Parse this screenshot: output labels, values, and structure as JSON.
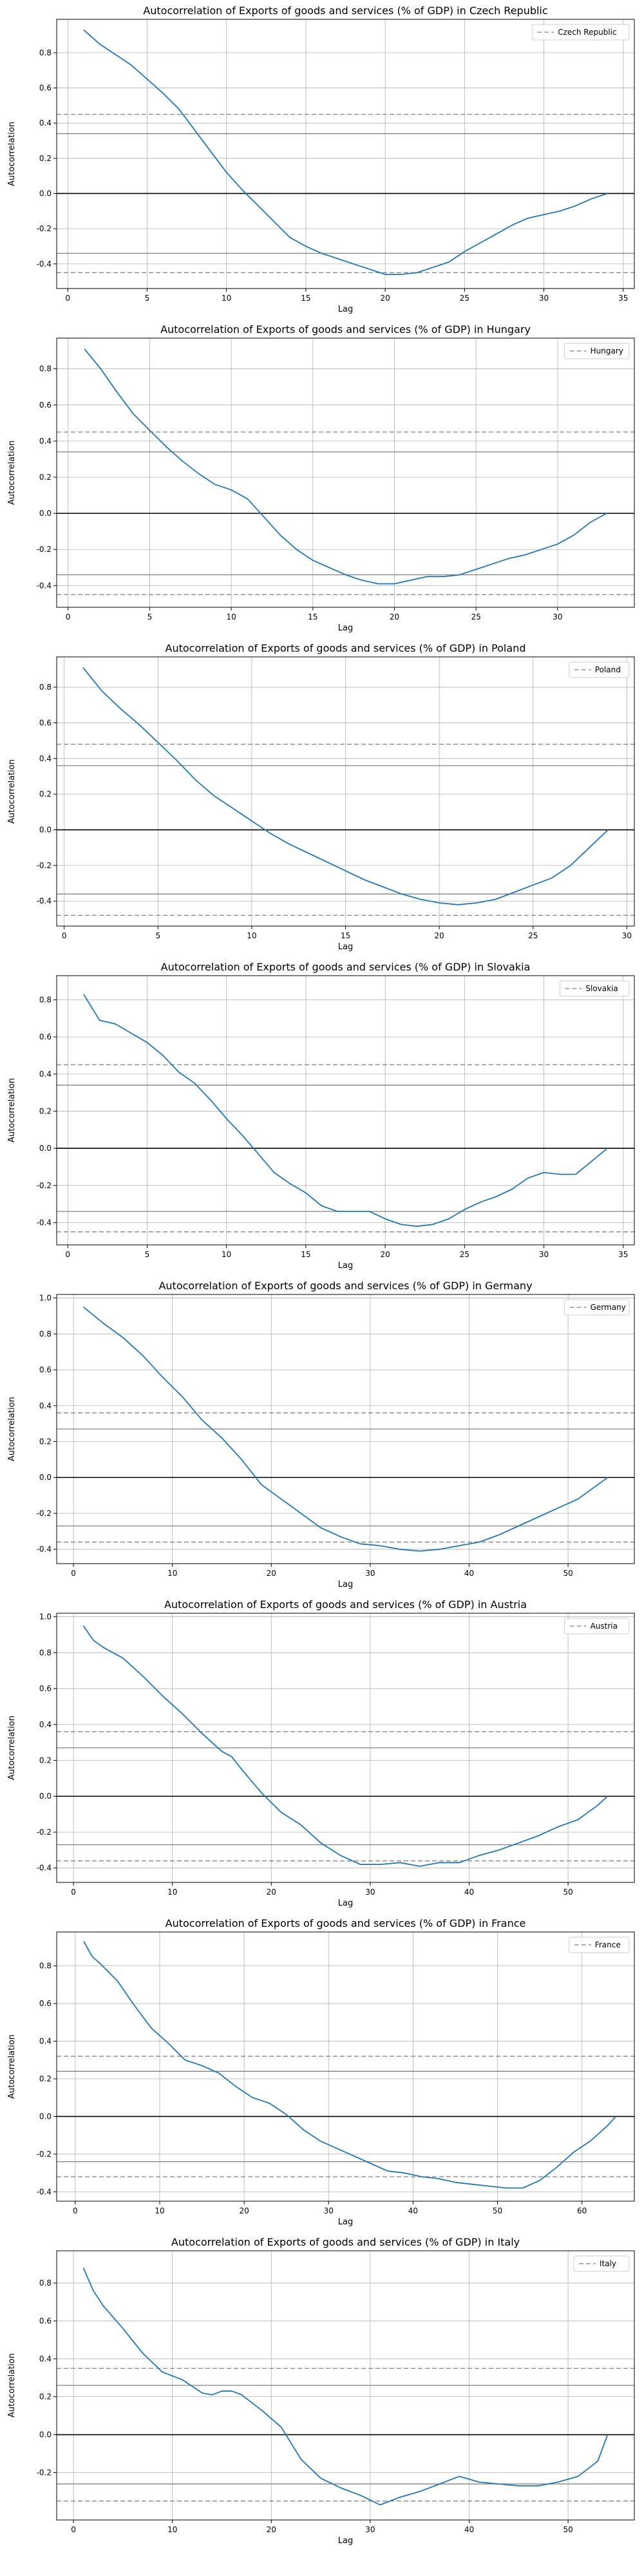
{
  "colors": {
    "series": "#1f77b4",
    "grid": "#b0b0b0",
    "zero_line": "#000000",
    "confidence_solid": "#808080",
    "confidence_dashed": "#808080",
    "axes": "#000000"
  },
  "chart_data": [
    {
      "type": "line",
      "title": "Autocorrelation of Exports of goods and services (% of GDP) in Czech Republic",
      "xlabel": "Lag",
      "ylabel": "Autocorrelation",
      "legend": "Czech Republic",
      "legend_position": "top-right",
      "grid": true,
      "xlim": [
        -0.7,
        35.7
      ],
      "ylim": [
        -0.54,
        0.99
      ],
      "xticks": [
        0,
        5,
        10,
        15,
        20,
        25,
        30,
        35
      ],
      "yticks": [
        -0.4,
        -0.2,
        0.0,
        0.2,
        0.4,
        0.6,
        0.8
      ],
      "conf_solid": 0.34,
      "conf_dashed": 0.45,
      "x": [
        1,
        2,
        3,
        4,
        5,
        6,
        7,
        8,
        9,
        10,
        11,
        12,
        13,
        14,
        15,
        16,
        17,
        18,
        19,
        20,
        21,
        22,
        23,
        24,
        25,
        26,
        27,
        28,
        29,
        30,
        31,
        32,
        33,
        34
      ],
      "values": [
        0.93,
        0.85,
        0.79,
        0.73,
        0.65,
        0.57,
        0.48,
        0.36,
        0.24,
        0.12,
        0.02,
        -0.07,
        -0.16,
        -0.25,
        -0.3,
        -0.34,
        -0.37,
        -0.4,
        -0.43,
        -0.46,
        -0.46,
        -0.45,
        -0.42,
        -0.39,
        -0.33,
        -0.28,
        -0.23,
        -0.18,
        -0.14,
        -0.12,
        -0.1,
        -0.07,
        -0.03,
        0.0
      ]
    },
    {
      "type": "line",
      "title": "Autocorrelation of Exports of goods and services (% of GDP) in Hungary",
      "xlabel": "Lag",
      "ylabel": "Autocorrelation",
      "legend": "Hungary",
      "legend_position": "top-right",
      "grid": true,
      "xlim": [
        -0.7,
        34.7
      ],
      "ylim": [
        -0.52,
        0.97
      ],
      "xticks": [
        0,
        5,
        10,
        15,
        20,
        25,
        30
      ],
      "yticks": [
        -0.4,
        -0.2,
        0.0,
        0.2,
        0.4,
        0.6,
        0.8
      ],
      "conf_solid": 0.34,
      "conf_dashed": 0.45,
      "x": [
        1,
        2,
        3,
        4,
        5,
        6,
        7,
        8,
        9,
        10,
        11,
        12,
        13,
        14,
        15,
        16,
        17,
        18,
        19,
        20,
        21,
        22,
        23,
        24,
        25,
        26,
        27,
        28,
        29,
        30,
        31,
        32,
        33
      ],
      "values": [
        0.91,
        0.8,
        0.67,
        0.55,
        0.46,
        0.37,
        0.29,
        0.22,
        0.16,
        0.13,
        0.08,
        -0.02,
        -0.12,
        -0.2,
        -0.26,
        -0.3,
        -0.34,
        -0.37,
        -0.39,
        -0.39,
        -0.37,
        -0.35,
        -0.35,
        -0.34,
        -0.31,
        -0.28,
        -0.25,
        -0.23,
        -0.2,
        -0.17,
        -0.12,
        -0.05,
        0.0
      ]
    },
    {
      "type": "line",
      "title": "Autocorrelation of Exports of goods and services (% of GDP) in Poland",
      "xlabel": "Lag",
      "ylabel": "Autocorrelation",
      "legend": "Poland",
      "legend_position": "top-right",
      "grid": true,
      "xlim": [
        -0.4,
        30.4
      ],
      "ylim": [
        -0.54,
        0.97
      ],
      "xticks": [
        0,
        5,
        10,
        15,
        20,
        25,
        30
      ],
      "yticks": [
        -0.4,
        -0.2,
        0.0,
        0.2,
        0.4,
        0.6,
        0.8
      ],
      "conf_solid": 0.36,
      "conf_dashed": 0.48,
      "x": [
        1,
        2,
        3,
        4,
        5,
        6,
        7,
        8,
        9,
        10,
        11,
        12,
        13,
        14,
        15,
        16,
        17,
        18,
        19,
        20,
        21,
        22,
        23,
        24,
        25,
        26,
        27,
        28,
        29
      ],
      "values": [
        0.91,
        0.78,
        0.68,
        0.59,
        0.49,
        0.39,
        0.28,
        0.19,
        0.12,
        0.05,
        -0.02,
        -0.08,
        -0.13,
        -0.18,
        -0.23,
        -0.28,
        -0.32,
        -0.36,
        -0.39,
        -0.41,
        -0.42,
        -0.41,
        -0.39,
        -0.35,
        -0.31,
        -0.27,
        -0.2,
        -0.1,
        0.0
      ]
    },
    {
      "type": "line",
      "title": "Autocorrelation of Exports of goods and services (% of GDP) in Slovakia",
      "xlabel": "Lag",
      "ylabel": "Autocorrelation",
      "legend": "Slovakia",
      "legend_position": "top-right",
      "grid": true,
      "xlim": [
        -0.7,
        35.7
      ],
      "ylim": [
        -0.52,
        0.93
      ],
      "xticks": [
        0,
        5,
        10,
        15,
        20,
        25,
        30,
        35
      ],
      "yticks": [
        -0.4,
        -0.2,
        0.0,
        0.2,
        0.4,
        0.6,
        0.8
      ],
      "conf_solid": 0.34,
      "conf_dashed": 0.45,
      "x": [
        1,
        2,
        3,
        4,
        5,
        6,
        7,
        8,
        9,
        10,
        11,
        12,
        13,
        14,
        15,
        16,
        17,
        18,
        19,
        20,
        21,
        22,
        23,
        24,
        25,
        26,
        27,
        28,
        29,
        30,
        31,
        32,
        33,
        34
      ],
      "values": [
        0.83,
        0.69,
        0.67,
        0.62,
        0.57,
        0.5,
        0.41,
        0.35,
        0.26,
        0.16,
        0.07,
        -0.03,
        -0.13,
        -0.19,
        -0.24,
        -0.31,
        -0.34,
        -0.34,
        -0.34,
        -0.38,
        -0.41,
        -0.42,
        -0.41,
        -0.38,
        -0.33,
        -0.29,
        -0.26,
        -0.22,
        -0.16,
        -0.13,
        -0.14,
        -0.14,
        -0.07,
        0.0
      ]
    },
    {
      "type": "line",
      "title": "Autocorrelation of Exports of goods and services (% of GDP) in Germany",
      "xlabel": "Lag",
      "ylabel": "Autocorrelation",
      "legend": "Germany",
      "legend_position": "top-right",
      "grid": true,
      "xlim": [
        -1.7,
        56.7
      ],
      "ylim": [
        -0.48,
        1.02
      ],
      "xticks": [
        0,
        10,
        20,
        30,
        40,
        50
      ],
      "yticks": [
        -0.4,
        -0.2,
        0.0,
        0.2,
        0.4,
        0.6,
        0.8,
        1.0
      ],
      "conf_solid": 0.27,
      "conf_dashed": 0.36,
      "x": [
        1,
        3,
        5,
        7,
        9,
        11,
        13,
        15,
        17,
        19,
        21,
        23,
        25,
        27,
        29,
        31,
        33,
        35,
        37,
        39,
        41,
        43,
        45,
        47,
        49,
        51,
        53,
        54
      ],
      "values": [
        0.95,
        0.86,
        0.78,
        0.68,
        0.56,
        0.45,
        0.32,
        0.22,
        0.1,
        -0.04,
        -0.12,
        -0.2,
        -0.28,
        -0.33,
        -0.37,
        -0.38,
        -0.4,
        -0.41,
        -0.4,
        -0.38,
        -0.36,
        -0.32,
        -0.27,
        -0.22,
        -0.17,
        -0.12,
        -0.04,
        0.0
      ]
    },
    {
      "type": "line",
      "title": "Autocorrelation of Exports of goods and services (% of GDP) in Austria",
      "xlabel": "Lag",
      "ylabel": "Autocorrelation",
      "legend": "Austria",
      "legend_position": "top-right",
      "grid": true,
      "xlim": [
        -1.7,
        56.7
      ],
      "ylim": [
        -0.48,
        1.02
      ],
      "xticks": [
        0,
        10,
        20,
        30,
        40,
        50
      ],
      "yticks": [
        -0.4,
        -0.2,
        0.0,
        0.2,
        0.4,
        0.6,
        0.8,
        1.0
      ],
      "conf_solid": 0.27,
      "conf_dashed": 0.36,
      "x": [
        1,
        2,
        3,
        5,
        7,
        9,
        11,
        13,
        15,
        16,
        17,
        19,
        21,
        23,
        25,
        27,
        29,
        31,
        33,
        35,
        37,
        39,
        41,
        43,
        45,
        47,
        49,
        51,
        53,
        54
      ],
      "values": [
        0.95,
        0.87,
        0.83,
        0.77,
        0.67,
        0.56,
        0.46,
        0.35,
        0.25,
        0.22,
        0.15,
        0.02,
        -0.09,
        -0.16,
        -0.26,
        -0.33,
        -0.38,
        -0.38,
        -0.37,
        -0.39,
        -0.37,
        -0.37,
        -0.33,
        -0.3,
        -0.26,
        -0.22,
        -0.17,
        -0.13,
        -0.05,
        0.0
      ]
    },
    {
      "type": "line",
      "title": "Autocorrelation of Exports of goods and services (% of GDP) in France",
      "xlabel": "Lag",
      "ylabel": "Autocorrelation",
      "legend": "France",
      "legend_position": "top-right",
      "grid": true,
      "xlim": [
        -2.2,
        66.2
      ],
      "ylim": [
        -0.45,
        0.98
      ],
      "xticks": [
        0,
        10,
        20,
        30,
        40,
        50,
        60
      ],
      "yticks": [
        -0.4,
        -0.2,
        0.0,
        0.2,
        0.4,
        0.6,
        0.8
      ],
      "conf_solid": 0.24,
      "conf_dashed": 0.32,
      "x": [
        1,
        2,
        3,
        5,
        7,
        9,
        11,
        13,
        15,
        17,
        19,
        21,
        23,
        25,
        27,
        29,
        31,
        33,
        35,
        37,
        39,
        41,
        43,
        45,
        47,
        49,
        51,
        53,
        55,
        57,
        59,
        61,
        63,
        64
      ],
      "values": [
        0.93,
        0.85,
        0.81,
        0.72,
        0.59,
        0.47,
        0.39,
        0.3,
        0.27,
        0.23,
        0.16,
        0.1,
        0.07,
        0.01,
        -0.07,
        -0.13,
        -0.17,
        -0.21,
        -0.25,
        -0.29,
        -0.3,
        -0.32,
        -0.33,
        -0.35,
        -0.36,
        -0.37,
        -0.38,
        -0.38,
        -0.34,
        -0.27,
        -0.19,
        -0.13,
        -0.05,
        0.0
      ]
    },
    {
      "type": "line",
      "title": "Autocorrelation of Exports of goods and services (% of GDP) in Italy",
      "xlabel": "Lag",
      "ylabel": "Autocorrelation",
      "legend": "Italy",
      "legend_position": "top-right",
      "grid": true,
      "xlim": [
        -1.7,
        56.7
      ],
      "ylim": [
        -0.45,
        0.97
      ],
      "xticks": [
        0,
        10,
        20,
        30,
        40,
        50
      ],
      "yticks": [
        -0.2,
        0.0,
        0.2,
        0.4,
        0.6,
        0.8
      ],
      "conf_solid": 0.26,
      "conf_dashed": 0.35,
      "x": [
        1,
        2,
        3,
        5,
        7,
        9,
        11,
        13,
        14,
        15,
        16,
        17,
        19,
        21,
        23,
        25,
        27,
        29,
        31,
        33,
        35,
        37,
        39,
        41,
        43,
        45,
        47,
        49,
        51,
        53,
        54
      ],
      "values": [
        0.88,
        0.76,
        0.68,
        0.56,
        0.43,
        0.33,
        0.29,
        0.22,
        0.21,
        0.23,
        0.23,
        0.21,
        0.13,
        0.04,
        -0.13,
        -0.23,
        -0.28,
        -0.32,
        -0.37,
        -0.33,
        -0.3,
        -0.26,
        -0.22,
        -0.25,
        -0.26,
        -0.27,
        -0.27,
        -0.25,
        -0.22,
        -0.14,
        0.0
      ]
    }
  ]
}
